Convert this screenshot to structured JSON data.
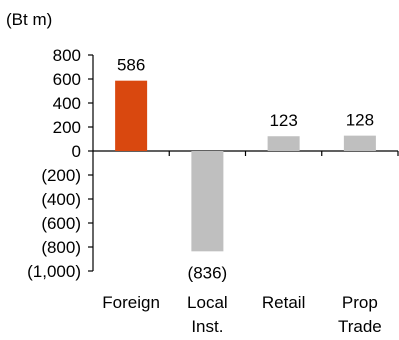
{
  "chart_data": {
    "type": "bar",
    "unit_label": "(Bt m)",
    "categories": [
      "Foreign",
      "Local Inst.",
      "Retail",
      "Prop Trade"
    ],
    "category_lines": [
      [
        "Foreign"
      ],
      [
        "Local",
        "Inst."
      ],
      [
        "Retail"
      ],
      [
        "Prop",
        "Trade"
      ]
    ],
    "values": [
      586,
      -836,
      123,
      128
    ],
    "data_labels": [
      "586",
      "(836)",
      "123",
      "128"
    ],
    "colors": [
      "#d9480f",
      "#bfbfbf",
      "#bfbfbf",
      "#bfbfbf"
    ],
    "y_ticks": [
      800,
      600,
      400,
      200,
      0,
      -200,
      -400,
      -600,
      -800,
      -1000
    ],
    "y_tick_labels": [
      "800",
      "600",
      "400",
      "200",
      "0",
      "(200)",
      "(400)",
      "(600)",
      "(800)",
      "(1,000)"
    ],
    "ylim": [
      -1000,
      800
    ],
    "grid": false
  }
}
